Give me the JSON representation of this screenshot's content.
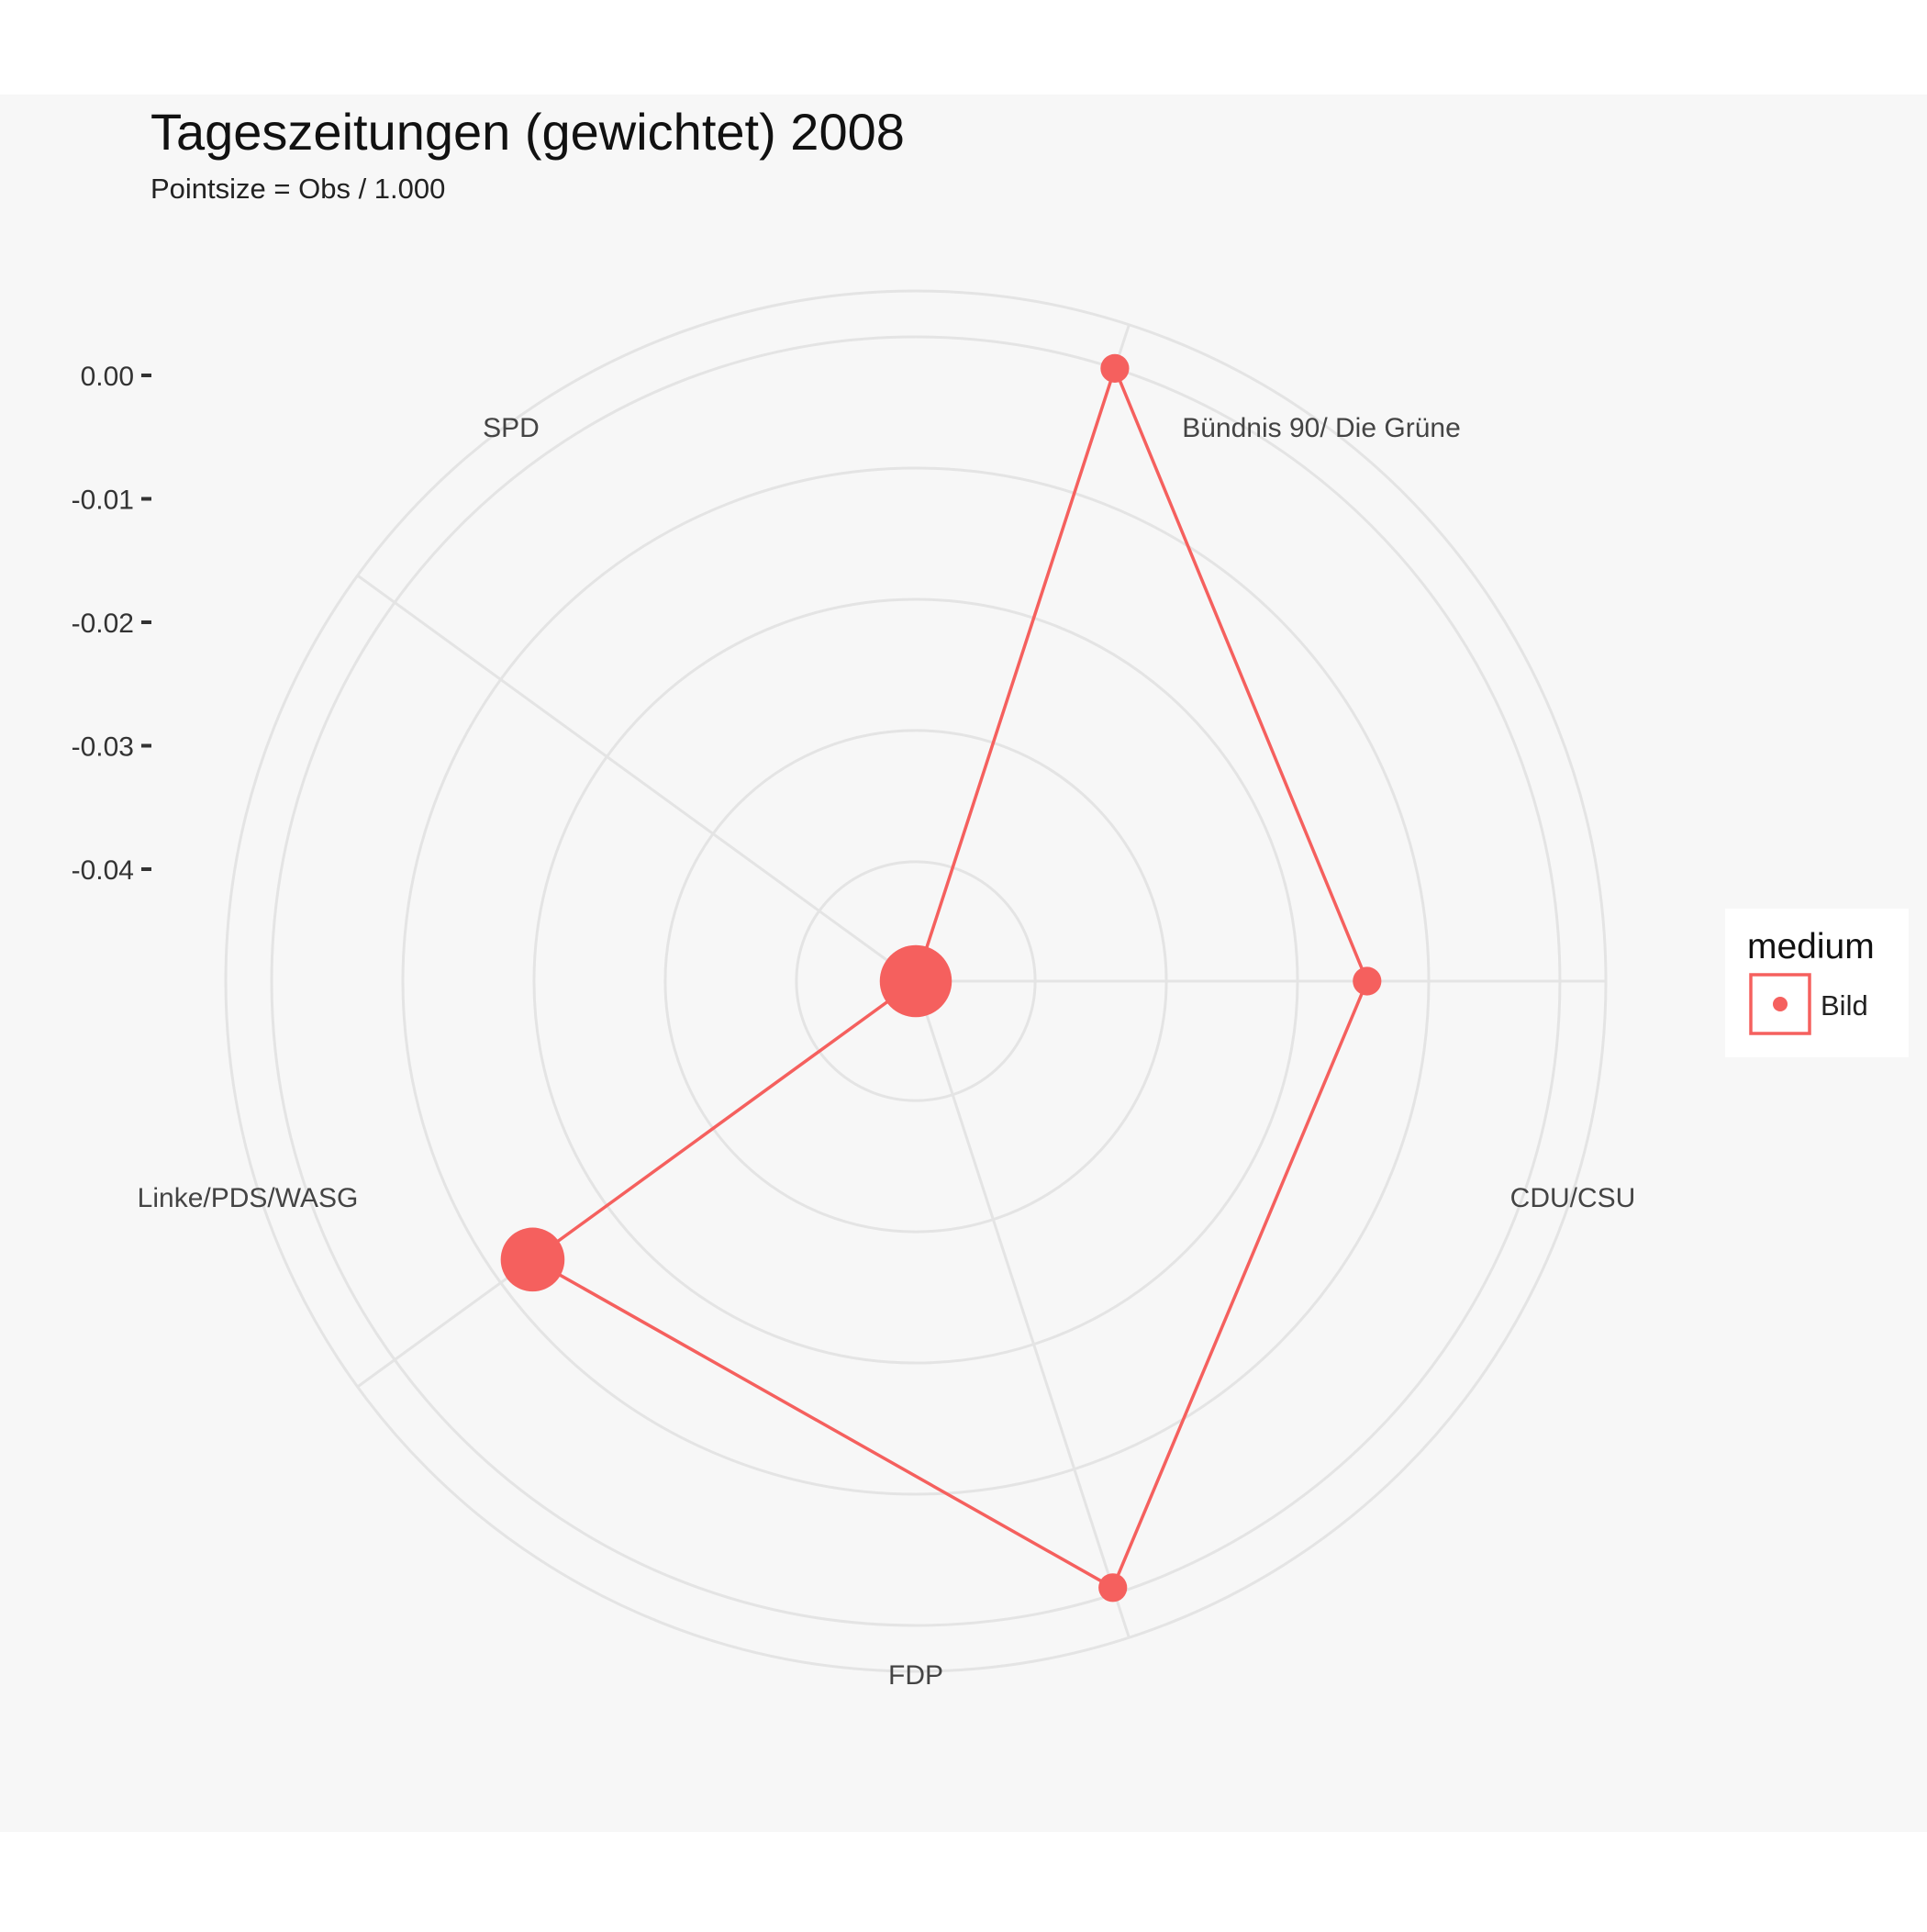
{
  "chart_data": {
    "type": "radar",
    "title": "Tageszeitungen (gewichtet) 2008",
    "subtitle": "Pointsize = Obs / 1.000",
    "categories": [
      "SPD",
      "Bündnis 90/ Die Grüne",
      "CDU/CSU",
      "FDP",
      "Linke/PDS/WASG"
    ],
    "radial_ticks": [
      "0.00",
      "-0.01",
      "-0.02",
      "-0.03",
      "-0.04"
    ],
    "radial_tick_values": [
      0.0,
      -0.01,
      -0.02,
      -0.03,
      -0.04
    ],
    "radial_range": [
      -0.0491,
      0.0035
    ],
    "grid": true,
    "legend": {
      "title": "medium",
      "position": "right",
      "entries": [
        "Bild"
      ]
    },
    "series": [
      {
        "name": "Bild",
        "color": "#F5605E",
        "values": [
          -0.0491,
          0.0,
          -0.0147,
          -0.0005,
          -0.013
        ],
        "point_sizes_obs_thousands": [
          12.0,
          1.0,
          1.0,
          1.0,
          9.0
        ]
      }
    ]
  },
  "colors": {
    "panel": "#F7F7F7",
    "grid": "#E4E4E4",
    "series": "#F5605E",
    "text": "#333333"
  }
}
